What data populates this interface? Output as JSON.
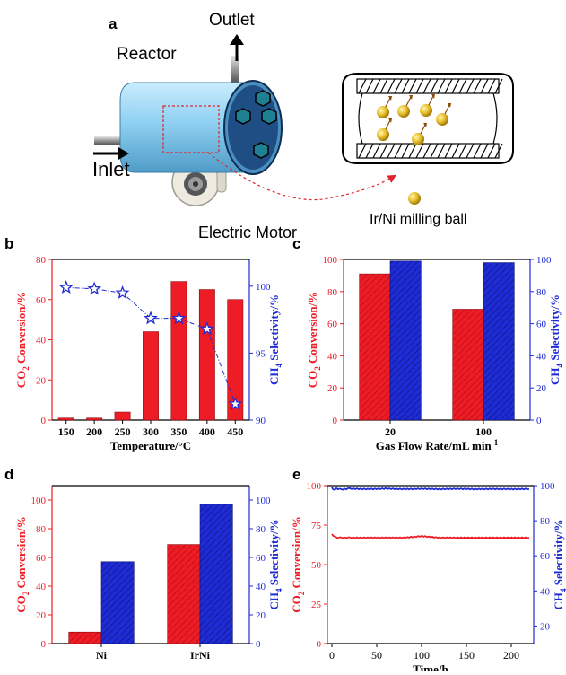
{
  "schematic": {
    "panel_letter": "a",
    "reactor_label": "Reactor",
    "outlet_label": "Outlet",
    "inlet_label": "Inlet",
    "motor_label": "Electric Motor",
    "ball_label": "Ir/Ni milling ball"
  },
  "colors": {
    "red": "#ee1c25",
    "blue": "#1f2bd4",
    "reactor": "#8fd0f2",
    "hex": "#1f7f93",
    "ball": "#e9c12b"
  },
  "chart_data": [
    {
      "panel": "b",
      "type": "bar",
      "categories": [
        "150",
        "200",
        "250",
        "300",
        "350",
        "400",
        "450"
      ],
      "xlabel": "Temperature/°C",
      "ylabel": "CO2 Conversion/%",
      "y2label": "CH4 Selectivity/%",
      "ylim": [
        0,
        80
      ],
      "yticks": [
        0,
        20,
        40,
        60,
        80
      ],
      "y2lim": [
        90,
        102
      ],
      "y2ticks": [
        90,
        95,
        100
      ],
      "series": [
        {
          "axis": "left",
          "kind": "bar",
          "values": [
            1,
            1,
            4,
            44,
            69,
            65,
            60
          ]
        },
        {
          "axis": "right",
          "kind": "line",
          "marker": "star",
          "values": [
            99.9,
            99.8,
            99.5,
            97.6,
            97.6,
            96.8,
            91.2
          ]
        }
      ]
    },
    {
      "panel": "c",
      "type": "bar",
      "categories": [
        "20",
        "100"
      ],
      "xlabel": "Gas Flow Rate/mL min-1",
      "ylabel": "CO2 Conversion/%",
      "y2label": "CH4 Selectivity/%",
      "ylim": [
        0,
        100
      ],
      "yticks": [
        0,
        20,
        40,
        60,
        80,
        100
      ],
      "y2lim": [
        0,
        100
      ],
      "y2ticks": [
        0,
        20,
        40,
        60,
        80,
        100
      ],
      "series": [
        {
          "axis": "left",
          "kind": "bar",
          "values": [
            91,
            69
          ]
        },
        {
          "axis": "right",
          "kind": "bar",
          "values": [
            99,
            98
          ]
        }
      ]
    },
    {
      "panel": "d",
      "type": "bar",
      "categories": [
        "Ni",
        "IrNi"
      ],
      "ylabel": "CO2 Conversion/%",
      "y2label": "CH4 Selectivity/%",
      "ylim": [
        0,
        110
      ],
      "yticks": [
        0,
        20,
        40,
        60,
        80,
        100
      ],
      "y2lim": [
        0,
        110
      ],
      "y2ticks": [
        0,
        20,
        40,
        60,
        80,
        100
      ],
      "series": [
        {
          "axis": "left",
          "kind": "bar",
          "values": [
            8,
            69
          ]
        },
        {
          "axis": "right",
          "kind": "bar",
          "values": [
            57,
            97
          ]
        }
      ]
    },
    {
      "panel": "e",
      "type": "line",
      "xlabel": "Time/h",
      "ylabel": "CO2 Conversion/%",
      "y2label": "CH4 Selectivity/%",
      "xlim": [
        -5,
        225
      ],
      "xticks": [
        0,
        50,
        100,
        150,
        200
      ],
      "ylim": [
        0,
        100
      ],
      "yticks": [
        0,
        25,
        50,
        75,
        100
      ],
      "y2lim": [
        10,
        100
      ],
      "y2ticks": [
        20,
        40,
        60,
        80,
        100
      ],
      "series": [
        {
          "axis": "left",
          "x": [
            0,
            5,
            10,
            20,
            40,
            60,
            80,
            100,
            120,
            140,
            160,
            180,
            200,
            220
          ],
          "values": [
            69,
            67,
            67,
            67,
            67,
            67,
            67,
            68,
            67,
            67,
            67,
            67,
            67,
            67
          ]
        },
        {
          "axis": "right",
          "x": [
            0,
            2,
            5,
            10,
            20,
            40,
            60,
            80,
            100,
            120,
            140,
            160,
            180,
            200,
            220
          ],
          "values": [
            99,
            97.5,
            98.3,
            97.8,
            98.3,
            98,
            98.3,
            98,
            98.2,
            98,
            98.2,
            98,
            98.1,
            98,
            98.1
          ]
        }
      ]
    }
  ]
}
